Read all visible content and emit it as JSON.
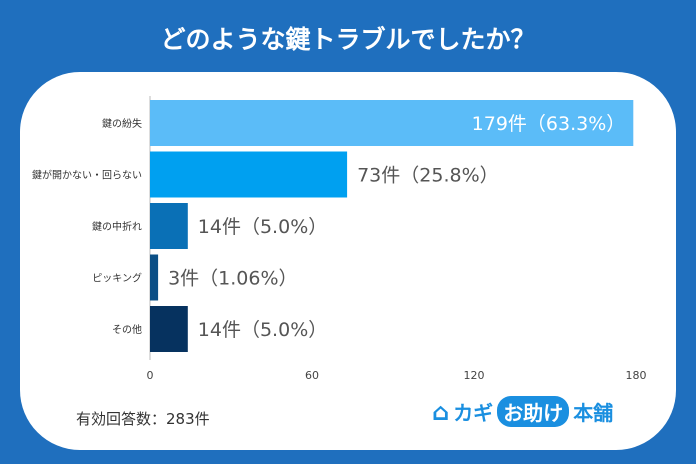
{
  "title": "どのような鍵トラブルでしたか？",
  "total": "有効回答数：283件",
  "logo": {
    "part1": "カギ",
    "part2": "お助け",
    "part3": "本舗"
  },
  "chart_data": {
    "type": "bar",
    "orientation": "horizontal",
    "categories": [
      "鍵の紛失",
      "鍵が開かない・回らない",
      "鍵の中折れ",
      "ピッキング",
      "その他"
    ],
    "values": [
      179,
      73,
      14,
      3,
      14
    ],
    "labels": [
      "179件（63.3%）",
      "73件（25.8%）",
      "14件（5.0%）",
      "3件（1.06%）",
      "14件（5.0%）"
    ],
    "colors": [
      "#5bbcf8",
      "#00a0f0",
      "#0a70b6",
      "#0b4f86",
      "#06325f"
    ],
    "xlim": [
      0,
      180
    ],
    "xticks": [
      0,
      60,
      120,
      180
    ],
    "grid": false
  }
}
